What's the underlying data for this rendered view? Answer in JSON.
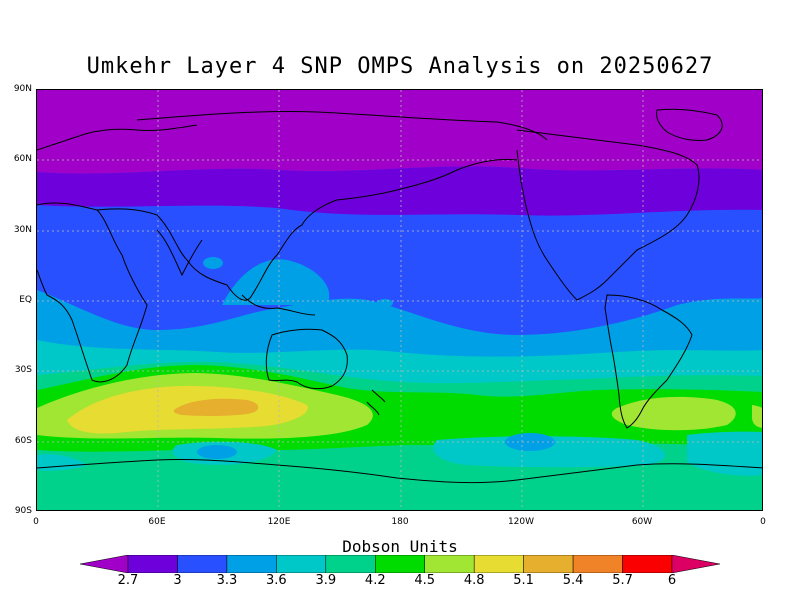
{
  "title": "Umkehr Layer 4 SNP OMPS Analysis on 20250627",
  "units_label": "Dobson Units",
  "y_axis_labels": [
    "90N",
    "60N",
    "30N",
    "EQ",
    "30S",
    "60S",
    "90S"
  ],
  "x_axis_labels": [
    "0",
    "60E",
    "120E",
    "180",
    "120W",
    "60W",
    "0"
  ],
  "colorbar": {
    "levels": [
      "2.7",
      "3",
      "3.3",
      "3.6",
      "3.9",
      "4.2",
      "4.5",
      "4.8",
      "5.1",
      "5.4",
      "5.7",
      "6"
    ],
    "colors": [
      "#a000c8",
      "#6e00dc",
      "#2850ff",
      "#00a0e6",
      "#00c8c8",
      "#00d28c",
      "#00dc00",
      "#a0e632",
      "#e6dc32",
      "#e6af2d",
      "#f08228",
      "#fa0000",
      "#dc0064"
    ]
  },
  "map_colors": {
    "band_2_7": "#a000c8",
    "band_3": "#6e00dc",
    "band_3_3": "#2850ff",
    "band_3_6": "#00a0e6",
    "band_3_9": "#00c8c8",
    "band_4_2": "#00d28c",
    "band_4_5": "#00dc00",
    "band_4_8": "#a0e632",
    "band_5_1": "#e6dc32",
    "band_5_4": "#e6af2d"
  }
}
